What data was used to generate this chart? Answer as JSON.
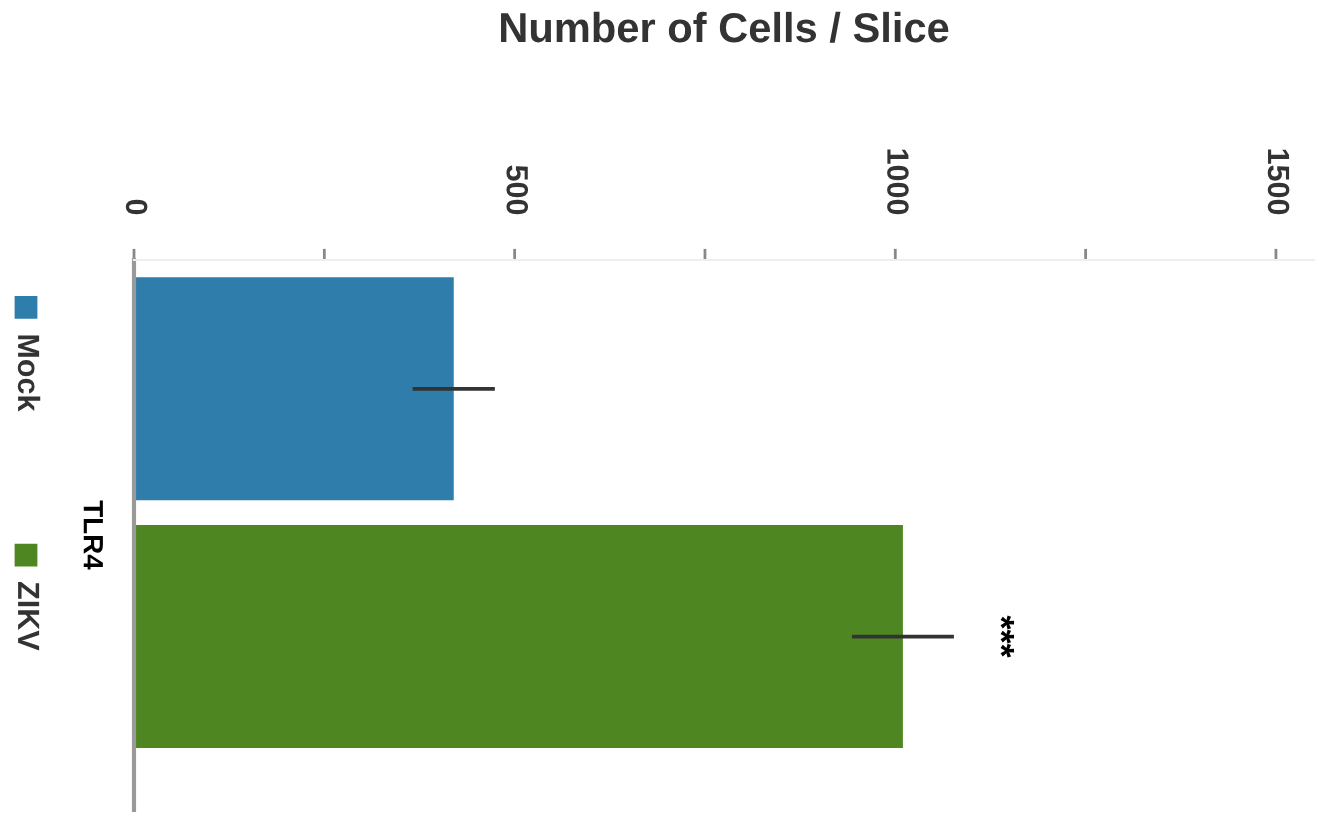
{
  "chart_data": {
    "type": "bar",
    "orientation": "horizontal",
    "title": "Number of Cells / Slice",
    "ylabel": "TLR4",
    "categories": [
      null,
      null
    ],
    "series": [
      {
        "name": "Mock",
        "color": "#2e7dab",
        "values": [
          420,
          null
        ],
        "errors": [
          54,
          null
        ]
      },
      {
        "name": "ZIKV",
        "color": "#4e8621",
        "values": [
          null,
          1010
        ],
        "errors": [
          null,
          67
        ]
      }
    ],
    "xlim": [
      0,
      1550
    ],
    "xticks": [
      0,
      {
        "value": 250,
        "label": null
      },
      500,
      {
        "value": 750,
        "label": null
      },
      1000,
      {
        "value": 1250,
        "label": null
      },
      1500
    ],
    "annotations": [
      "***"
    ],
    "legend": "left",
    "grid": false
  }
}
